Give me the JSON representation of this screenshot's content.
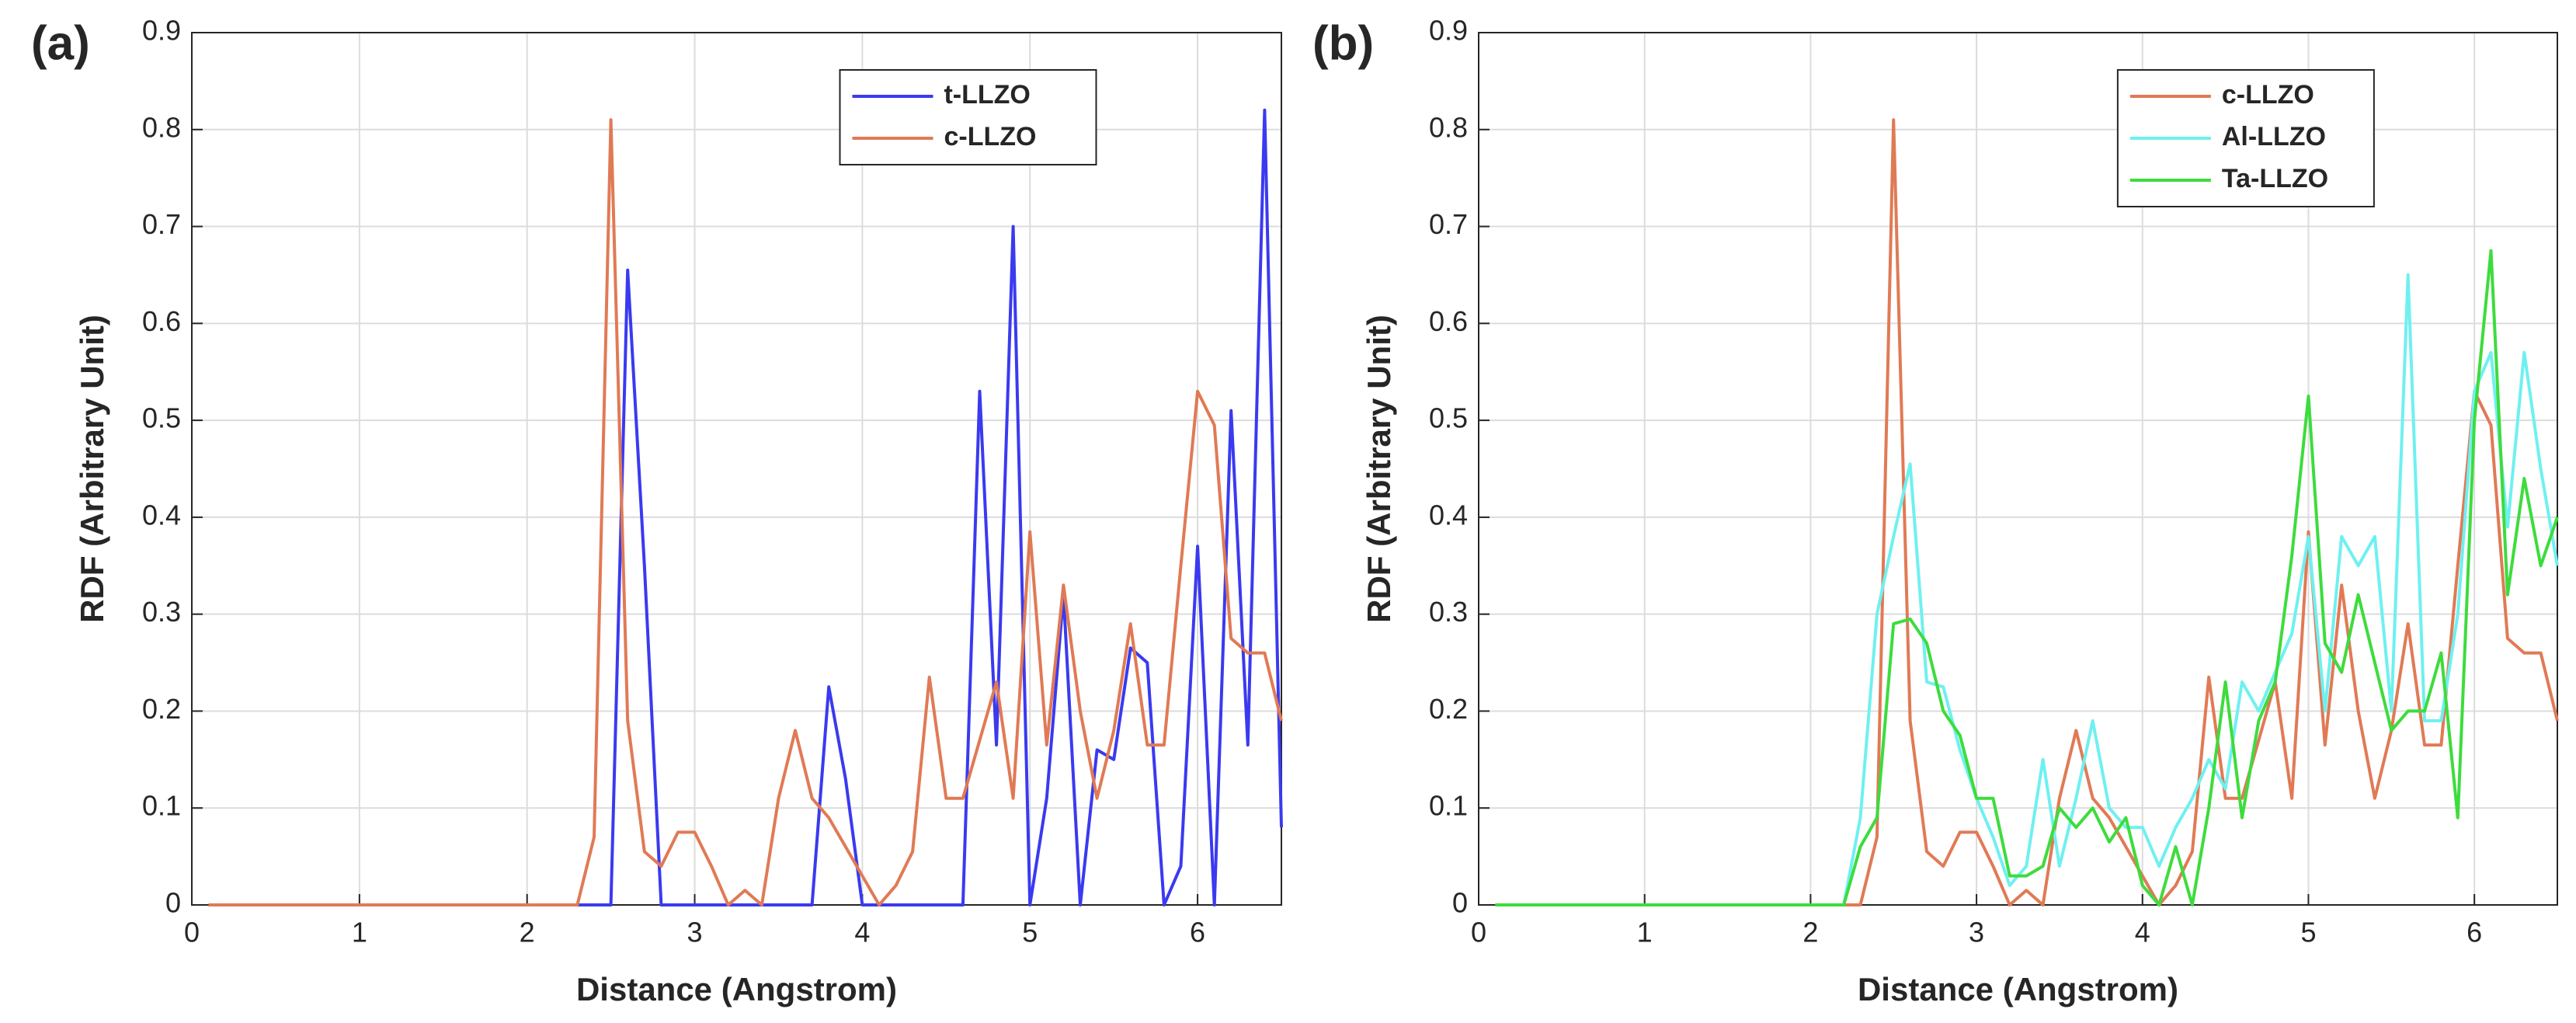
{
  "chart_data": [
    {
      "type": "line",
      "panel_label": "(a)",
      "x_label": "Distance (Angstrom)",
      "y_label": "RDF (Arbitrary Unit)",
      "xlim": [
        0,
        6.5
      ],
      "ylim": [
        0,
        0.9
      ],
      "xticks": [
        0,
        1,
        2,
        3,
        4,
        5,
        6
      ],
      "yticks": [
        0,
        0.1,
        0.2,
        0.3,
        0.4,
        0.5,
        0.6,
        0.7,
        0.8,
        0.9
      ],
      "grid": true,
      "legend": "northeast",
      "x": [
        0.1,
        0.2,
        0.3,
        0.4,
        0.5,
        0.6,
        0.7,
        0.8,
        0.9,
        1.0,
        1.1,
        1.2,
        1.3,
        1.4,
        1.5,
        1.6,
        1.7,
        1.8,
        1.9,
        2.0,
        2.1,
        2.2,
        2.3,
        2.4,
        2.5,
        2.6,
        2.7,
        2.8,
        2.9,
        3.0,
        3.1,
        3.2,
        3.3,
        3.4,
        3.5,
        3.6,
        3.7,
        3.8,
        3.9,
        4.0,
        4.1,
        4.2,
        4.3,
        4.4,
        4.5,
        4.6,
        4.7,
        4.8,
        4.9,
        5.0,
        5.1,
        5.2,
        5.3,
        5.4,
        5.5,
        5.6,
        5.7,
        5.8,
        5.9,
        6.0,
        6.1,
        6.2,
        6.3,
        6.4,
        6.5
      ],
      "series": [
        {
          "name": "t-LLZO",
          "color": "#3a3af0",
          "values": [
            0,
            0,
            0,
            0,
            0,
            0,
            0,
            0,
            0,
            0,
            0,
            0,
            0,
            0,
            0,
            0,
            0,
            0,
            0,
            0,
            0,
            0,
            0,
            0,
            0,
            0.655,
            0.35,
            0,
            0,
            0,
            0,
            0,
            0,
            0,
            0,
            0,
            0,
            0.225,
            0.13,
            0,
            0,
            0,
            0,
            0,
            0,
            0,
            0.53,
            0.165,
            0.7,
            0,
            0.11,
            0.32,
            0,
            0.16,
            0.15,
            0.265,
            0.25,
            0,
            0.04,
            0.37,
            0,
            0.51,
            0.165,
            0.82,
            0.08
          ]
        },
        {
          "name": "c-LLZO",
          "color": "#e07a55",
          "values": [
            0,
            0,
            0,
            0,
            0,
            0,
            0,
            0,
            0,
            0,
            0,
            0,
            0,
            0,
            0,
            0,
            0,
            0,
            0,
            0,
            0,
            0,
            0,
            0.07,
            0.81,
            0.19,
            0.055,
            0.04,
            0.075,
            0.075,
            0.04,
            0,
            0.015,
            0,
            0.11,
            0.18,
            0.11,
            0.09,
            0.06,
            0.03,
            0,
            0.02,
            0.055,
            0.235,
            0.11,
            0.11,
            0.17,
            0.23,
            0.11,
            0.385,
            0.165,
            0.33,
            0.2,
            0.11,
            0.18,
            0.29,
            0.165,
            0.165,
            0.35,
            0.53,
            0.495,
            0.275,
            0.26,
            0.26,
            0.19
          ]
        }
      ]
    },
    {
      "type": "line",
      "panel_label": "(b)",
      "x_label": "Distance (Angstrom)",
      "y_label": "RDF (Arbitrary Unit)",
      "xlim": [
        0,
        6.5
      ],
      "ylim": [
        0,
        0.9
      ],
      "xticks": [
        0,
        1,
        2,
        3,
        4,
        5,
        6
      ],
      "yticks": [
        0,
        0.1,
        0.2,
        0.3,
        0.4,
        0.5,
        0.6,
        0.7,
        0.8,
        0.9
      ],
      "grid": true,
      "legend": "northeast",
      "x": [
        0.1,
        0.2,
        0.3,
        0.4,
        0.5,
        0.6,
        0.7,
        0.8,
        0.9,
        1.0,
        1.1,
        1.2,
        1.3,
        1.4,
        1.5,
        1.6,
        1.7,
        1.8,
        1.9,
        2.0,
        2.1,
        2.2,
        2.3,
        2.4,
        2.5,
        2.6,
        2.7,
        2.8,
        2.9,
        3.0,
        3.1,
        3.2,
        3.3,
        3.4,
        3.5,
        3.6,
        3.7,
        3.8,
        3.9,
        4.0,
        4.1,
        4.2,
        4.3,
        4.4,
        4.5,
        4.6,
        4.7,
        4.8,
        4.9,
        5.0,
        5.1,
        5.2,
        5.3,
        5.4,
        5.5,
        5.6,
        5.7,
        5.8,
        5.9,
        6.0,
        6.1,
        6.2,
        6.3,
        6.4,
        6.5
      ],
      "series": [
        {
          "name": "c-LLZO",
          "color": "#e07a55",
          "values": [
            0,
            0,
            0,
            0,
            0,
            0,
            0,
            0,
            0,
            0,
            0,
            0,
            0,
            0,
            0,
            0,
            0,
            0,
            0,
            0,
            0,
            0,
            0,
            0.07,
            0.81,
            0.19,
            0.055,
            0.04,
            0.075,
            0.075,
            0.04,
            0,
            0.015,
            0,
            0.11,
            0.18,
            0.11,
            0.09,
            0.06,
            0.03,
            0,
            0.02,
            0.055,
            0.235,
            0.11,
            0.11,
            0.17,
            0.23,
            0.11,
            0.385,
            0.165,
            0.33,
            0.2,
            0.11,
            0.18,
            0.29,
            0.165,
            0.165,
            0.35,
            0.53,
            0.495,
            0.275,
            0.26,
            0.26,
            0.19
          ]
        },
        {
          "name": "Al-LLZO",
          "color": "#6ff0f0",
          "values": [
            0,
            0,
            0,
            0,
            0,
            0,
            0,
            0,
            0,
            0,
            0,
            0,
            0,
            0,
            0,
            0,
            0,
            0,
            0,
            0,
            0,
            0,
            0.09,
            0.3,
            0.38,
            0.455,
            0.23,
            0.225,
            0.16,
            0.11,
            0.07,
            0.02,
            0.04,
            0.15,
            0.04,
            0.11,
            0.19,
            0.1,
            0.08,
            0.08,
            0.04,
            0.08,
            0.11,
            0.15,
            0.12,
            0.23,
            0.2,
            0.24,
            0.28,
            0.38,
            0.2,
            0.38,
            0.35,
            0.38,
            0.2,
            0.65,
            0.19,
            0.19,
            0.3,
            0.53,
            0.57,
            0.39,
            0.57,
            0.45,
            0.35
          ]
        },
        {
          "name": "Ta-LLZO",
          "color": "#3ddc3d",
          "values": [
            0,
            0,
            0,
            0,
            0,
            0,
            0,
            0,
            0,
            0,
            0,
            0,
            0,
            0,
            0,
            0,
            0,
            0,
            0,
            0,
            0,
            0,
            0.06,
            0.09,
            0.29,
            0.295,
            0.27,
            0.2,
            0.175,
            0.11,
            0.11,
            0.03,
            0.03,
            0.04,
            0.1,
            0.08,
            0.1,
            0.065,
            0.09,
            0.02,
            0,
            0.06,
            0,
            0.1,
            0.23,
            0.09,
            0.19,
            0.23,
            0.36,
            0.525,
            0.27,
            0.24,
            0.32,
            0.25,
            0.18,
            0.2,
            0.2,
            0.26,
            0.09,
            0.5,
            0.675,
            0.32,
            0.44,
            0.35,
            0.4
          ]
        }
      ]
    }
  ]
}
